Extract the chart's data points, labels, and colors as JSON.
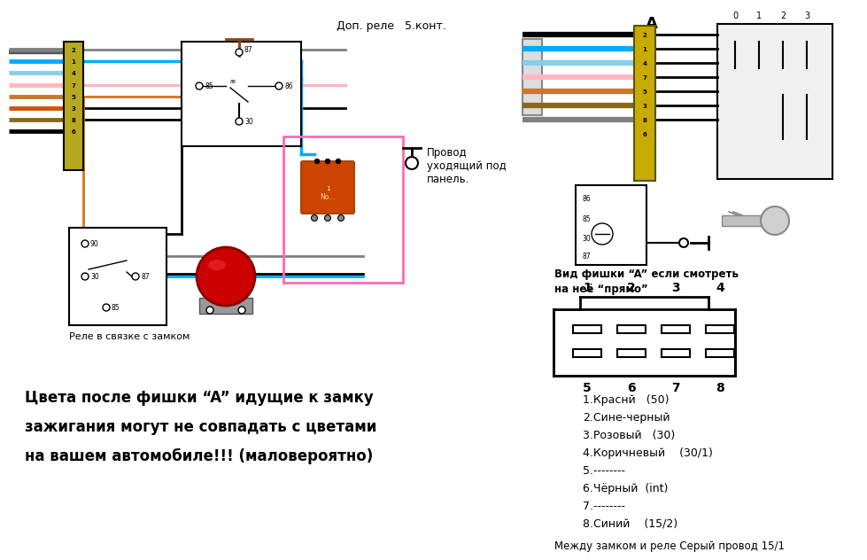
{
  "bg_color": "#ffffff",
  "pin_descriptions": [
    "1.Краснй   (50)",
    "2.Сине-черный",
    "3.Розовый   (30)",
    "4.Коричневый    (30/1)",
    "5.--------",
    "6.Чёрный  (int)",
    "7.--------",
    "8.Синий    (15/2)"
  ],
  "footer_text": "Между замком и реле Серый провод 15/1",
  "view_text_line1": "Вид фишки “A” если смотреть",
  "view_text_line2": "на неё “прямо”",
  "relay_text": "Реле в связке с замком",
  "dop_relay_text": "Доп. реле   5.конт.",
  "wire_text": "Провод\nуходящий под\nпанель.",
  "bottom_text_line1": "Цвета после фишки “A” идущие к замку",
  "bottom_text_line2": "зажигания могут не совпадать с цветами",
  "bottom_text_line3": "на вашем автомобиле!!! (маловероятно)",
  "connector_A_label": "A",
  "left_wire_colors": [
    "#000000",
    "#00aaff",
    "#ffb6c1",
    "#cc7722",
    "#000000",
    "#808080"
  ],
  "left_wire_labels": [
    "2",
    "1",
    "4",
    "7",
    "5",
    "3",
    "8",
    "6"
  ],
  "right_wire_colors_top": [
    "#000000",
    "#000000",
    "#00aaff",
    "#00aaff",
    "#ffb6c1",
    "#cc7722",
    "#808080"
  ],
  "right_wire_colors_bot": [
    "#000000",
    "#808080"
  ]
}
